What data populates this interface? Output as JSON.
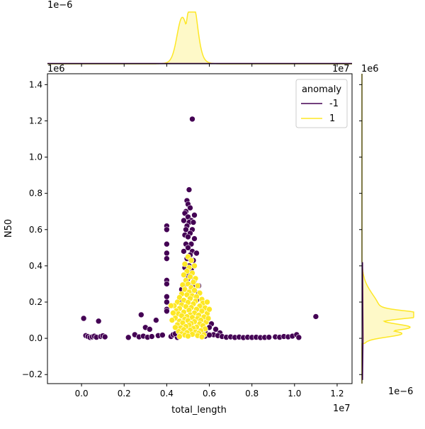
{
  "chart_data": {
    "type": "scatter",
    "title": "",
    "xlabel": "total_length",
    "ylabel": "N50",
    "x_offset_text": "1e7",
    "y_offset_text": "1e6",
    "top_marginal_offset_text": "1e−6",
    "right_marginal_offset_text_top": "1e6",
    "right_marginal_offset_text_bottom": "1e−6",
    "xlim": [
      -1600000,
      12700000
    ],
    "ylim": [
      -250000,
      1460000
    ],
    "x_ticks": [
      0,
      2000000,
      4000000,
      6000000,
      8000000,
      10000000,
      12000000
    ],
    "x_tick_labels": [
      "0.0",
      "0.2",
      "0.4",
      "0.6",
      "0.8",
      "1.0",
      "1.2"
    ],
    "y_ticks": [
      -200000,
      0,
      200000,
      400000,
      600000,
      800000,
      1000000,
      1200000,
      1400000
    ],
    "y_tick_labels": [
      "−0.2",
      "0.0",
      "0.2",
      "0.4",
      "0.6",
      "0.8",
      "1.0",
      "1.2",
      "1.4"
    ],
    "grid": false,
    "legend": {
      "title": "anomaly",
      "placement": "top-right",
      "entries": [
        {
          "label": "-1",
          "color": "#440154"
        },
        {
          "label": "1",
          "color": "#fde725"
        }
      ]
    },
    "series": [
      {
        "name": "-1",
        "color": "#440154",
        "points": [
          [
            5200000,
            1210000
          ],
          [
            5050000,
            820000
          ],
          [
            4950000,
            760000
          ],
          [
            5000000,
            740000
          ],
          [
            4900000,
            700000
          ],
          [
            5100000,
            720000
          ],
          [
            5300000,
            680000
          ],
          [
            4850000,
            690000
          ],
          [
            5000000,
            670000
          ],
          [
            5150000,
            650000
          ],
          [
            4800000,
            650000
          ],
          [
            5050000,
            640000
          ],
          [
            5250000,
            640000
          ],
          [
            4950000,
            620000
          ],
          [
            5200000,
            600000
          ],
          [
            4900000,
            600000
          ],
          [
            5100000,
            580000
          ],
          [
            4850000,
            570000
          ],
          [
            5000000,
            560000
          ],
          [
            5300000,
            550000
          ],
          [
            5150000,
            520000
          ],
          [
            4900000,
            520000
          ],
          [
            5000000,
            500000
          ],
          [
            5200000,
            480000
          ],
          [
            4800000,
            480000
          ],
          [
            5100000,
            460000
          ],
          [
            5400000,
            470000
          ],
          [
            4950000,
            440000
          ],
          [
            5250000,
            430000
          ],
          [
            5050000,
            400000
          ],
          [
            4850000,
            390000
          ],
          [
            5150000,
            380000
          ],
          [
            4950000,
            360000
          ],
          [
            5000000,
            330000
          ],
          [
            5300000,
            320000
          ],
          [
            4900000,
            300000
          ],
          [
            5200000,
            290000
          ],
          [
            5100000,
            260000
          ],
          [
            4700000,
            270000
          ],
          [
            5500000,
            250000
          ],
          [
            5400000,
            210000
          ],
          [
            4600000,
            200000
          ],
          [
            5600000,
            170000
          ],
          [
            4000000,
            620000
          ],
          [
            4000000,
            600000
          ],
          [
            4000000,
            520000
          ],
          [
            4000000,
            470000
          ],
          [
            4000000,
            440000
          ],
          [
            4000000,
            320000
          ],
          [
            4000000,
            300000
          ],
          [
            4000000,
            230000
          ],
          [
            4000000,
            200000
          ],
          [
            4000000,
            160000
          ],
          [
            4000000,
            150000
          ],
          [
            5400000,
            470000
          ],
          [
            5500000,
            290000
          ],
          [
            6100000,
            80000
          ],
          [
            6300000,
            50000
          ],
          [
            6000000,
            60000
          ],
          [
            6500000,
            30000
          ],
          [
            6200000,
            20000
          ],
          [
            100000,
            110000
          ],
          [
            800000,
            95000
          ],
          [
            2800000,
            130000
          ],
          [
            3500000,
            100000
          ],
          [
            3000000,
            60000
          ],
          [
            3200000,
            50000
          ],
          [
            2500000,
            20000
          ],
          [
            11000000,
            120000
          ],
          [
            200000,
            15000
          ],
          [
            300000,
            10000
          ],
          [
            400000,
            5000
          ],
          [
            500000,
            8000
          ],
          [
            600000,
            12000
          ],
          [
            700000,
            6000
          ],
          [
            900000,
            10000
          ],
          [
            1000000,
            14000
          ],
          [
            1100000,
            8000
          ],
          [
            2200000,
            5000
          ],
          [
            2700000,
            8000
          ],
          [
            2900000,
            12000
          ],
          [
            3100000,
            6000
          ],
          [
            3300000,
            10000
          ],
          [
            3600000,
            15000
          ],
          [
            3800000,
            18000
          ],
          [
            4200000,
            10000
          ],
          [
            4300000,
            20000
          ],
          [
            4500000,
            5000
          ],
          [
            5800000,
            12000
          ],
          [
            6000000,
            18000
          ],
          [
            6400000,
            15000
          ],
          [
            6600000,
            10000
          ],
          [
            6800000,
            6000
          ],
          [
            7000000,
            8000
          ],
          [
            7200000,
            5000
          ],
          [
            7400000,
            7000
          ],
          [
            7600000,
            4000
          ],
          [
            7800000,
            6000
          ],
          [
            8000000,
            5000
          ],
          [
            8200000,
            6000
          ],
          [
            8400000,
            4000
          ],
          [
            8600000,
            5000
          ],
          [
            8800000,
            6000
          ],
          [
            9100000,
            8000
          ],
          [
            9300000,
            6000
          ],
          [
            9500000,
            10000
          ],
          [
            9700000,
            8000
          ],
          [
            9900000,
            12000
          ],
          [
            10100000,
            20000
          ],
          [
            10200000,
            5000
          ],
          [
            4600000,
            40000
          ],
          [
            4800000,
            30000
          ],
          [
            5000000,
            20000
          ],
          [
            5200000,
            25000
          ],
          [
            5400000,
            30000
          ],
          [
            5600000,
            35000
          ],
          [
            5800000,
            40000
          ],
          [
            4400000,
            25000
          ]
        ]
      },
      {
        "name": "1",
        "color": "#fde725",
        "points": [
          [
            5000000,
            450000
          ],
          [
            5150000,
            430000
          ],
          [
            4850000,
            410000
          ],
          [
            5300000,
            400000
          ],
          [
            5050000,
            390000
          ],
          [
            4950000,
            370000
          ],
          [
            5200000,
            360000
          ],
          [
            4800000,
            350000
          ],
          [
            5100000,
            340000
          ],
          [
            5350000,
            330000
          ],
          [
            4900000,
            320000
          ],
          [
            5250000,
            310000
          ],
          [
            5000000,
            300000
          ],
          [
            4750000,
            295000
          ],
          [
            5450000,
            290000
          ],
          [
            5150000,
            280000
          ],
          [
            4850000,
            270000
          ],
          [
            5300000,
            265000
          ],
          [
            5050000,
            255000
          ],
          [
            5550000,
            250000
          ],
          [
            4700000,
            245000
          ],
          [
            4950000,
            240000
          ],
          [
            5200000,
            235000
          ],
          [
            5400000,
            230000
          ],
          [
            4600000,
            225000
          ],
          [
            5100000,
            220000
          ],
          [
            5650000,
            215000
          ],
          [
            4800000,
            210000
          ],
          [
            5350000,
            205000
          ],
          [
            4500000,
            200000
          ],
          [
            5000000,
            198000
          ],
          [
            5700000,
            195000
          ],
          [
            5250000,
            190000
          ],
          [
            4700000,
            185000
          ],
          [
            4350000,
            180000
          ],
          [
            5550000,
            178000
          ],
          [
            4900000,
            175000
          ],
          [
            5150000,
            170000
          ],
          [
            5800000,
            168000
          ],
          [
            4600000,
            165000
          ],
          [
            5400000,
            160000
          ],
          [
            5050000,
            155000
          ],
          [
            4450000,
            152000
          ],
          [
            5650000,
            150000
          ],
          [
            4800000,
            145000
          ],
          [
            5300000,
            140000
          ],
          [
            5900000,
            138000
          ],
          [
            4550000,
            135000
          ],
          [
            5100000,
            130000
          ],
          [
            5500000,
            128000
          ],
          [
            4700000,
            125000
          ],
          [
            4950000,
            120000
          ],
          [
            5750000,
            118000
          ],
          [
            5200000,
            115000
          ],
          [
            4400000,
            112000
          ],
          [
            5450000,
            110000
          ],
          [
            4850000,
            105000
          ],
          [
            5600000,
            100000
          ],
          [
            5000000,
            98000
          ],
          [
            4600000,
            95000
          ],
          [
            5300000,
            92000
          ],
          [
            5850000,
            90000
          ],
          [
            4750000,
            85000
          ],
          [
            5150000,
            82000
          ],
          [
            5550000,
            80000
          ],
          [
            4500000,
            75000
          ],
          [
            5050000,
            72000
          ],
          [
            5700000,
            70000
          ],
          [
            4900000,
            65000
          ],
          [
            5400000,
            62000
          ],
          [
            4650000,
            58000
          ],
          [
            5250000,
            55000
          ],
          [
            5800000,
            52000
          ],
          [
            4800000,
            48000
          ],
          [
            5100000,
            45000
          ],
          [
            5600000,
            42000
          ],
          [
            4550000,
            38000
          ],
          [
            5350000,
            35000
          ],
          [
            4950000,
            32000
          ],
          [
            5500000,
            28000
          ],
          [
            4700000,
            25000
          ],
          [
            5200000,
            22000
          ],
          [
            5750000,
            20000
          ],
          [
            4850000,
            18000
          ],
          [
            5450000,
            15000
          ],
          [
            5000000,
            12000
          ],
          [
            4600000,
            10000
          ],
          [
            5650000,
            8000
          ],
          [
            4200000,
            180000
          ],
          [
            4300000,
            140000
          ],
          [
            4250000,
            100000
          ],
          [
            4400000,
            60000
          ],
          [
            5950000,
            110000
          ],
          [
            6000000,
            160000
          ],
          [
            5900000,
            200000
          ]
        ]
      }
    ],
    "top_marginal": {
      "type": "kde",
      "series": [
        {
          "name": "1",
          "color": "#fde725",
          "peaks_x": [
            4700000,
            5200000
          ],
          "peak_heights": [
            0.62,
            1.0
          ]
        },
        {
          "name": "-1",
          "color": "#440154",
          "flat": true
        }
      ]
    },
    "right_marginal": {
      "type": "kde",
      "series": [
        {
          "name": "1",
          "color": "#fde725",
          "peaks_y": [
            130000,
            60000,
            25000
          ],
          "peak_heights": [
            1.0,
            0.72,
            0.64
          ]
        },
        {
          "name": "-1",
          "color": "#440154",
          "flat": true
        }
      ]
    }
  }
}
